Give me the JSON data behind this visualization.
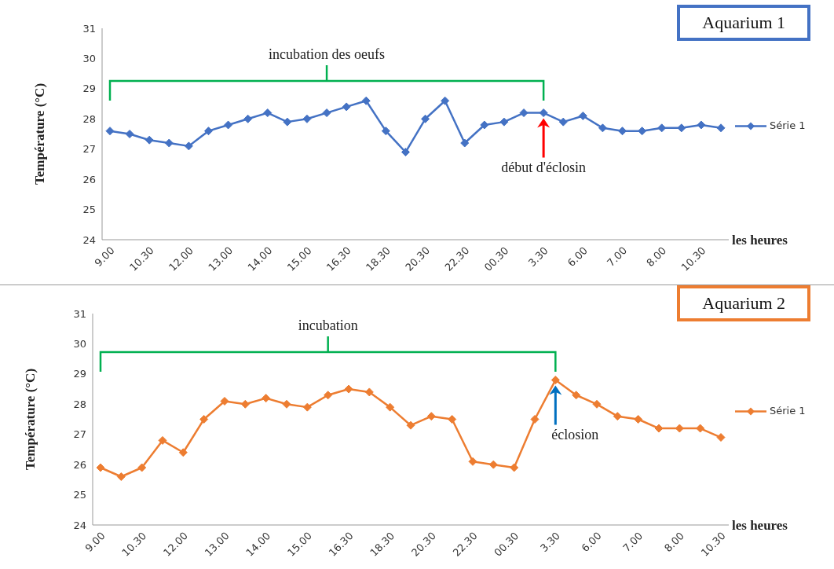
{
  "chart_data": [
    {
      "type": "line",
      "title": "Aquarium 1",
      "xlabel": "les heures",
      "ylabel": "Température (°C)",
      "categories": [
        "9.00",
        null,
        "10.30",
        null,
        "12.00",
        null,
        "13.00",
        null,
        "14.00",
        null,
        "15.00",
        null,
        "16.30",
        null,
        "18.30",
        null,
        "20.30",
        null,
        "22.30",
        null,
        "00.30",
        null,
        "3.30",
        null,
        "6.00",
        null,
        "7.00",
        null,
        "8.00",
        null,
        "10.30",
        null
      ],
      "series": [
        {
          "name": "Série 1",
          "color": "#4472c4",
          "values": [
            27.6,
            27.5,
            27.3,
            27.2,
            27.1,
            27.6,
            27.8,
            28.0,
            28.2,
            27.9,
            28.0,
            28.2,
            28.4,
            28.6,
            27.6,
            26.9,
            28.0,
            28.6,
            27.2,
            27.8,
            27.9,
            28.2,
            28.2,
            27.9,
            28.1,
            27.7,
            27.6,
            27.6,
            27.7,
            27.7,
            27.8,
            27.7
          ]
        }
      ],
      "ylim": [
        24,
        31
      ],
      "yticks": [
        24,
        25,
        26,
        27,
        28,
        29,
        30,
        31
      ],
      "legend": "right",
      "marker": "diamond",
      "grid": false,
      "annotations": [
        "incubation des oeufs",
        "début d'éclosin"
      ]
    },
    {
      "type": "line",
      "title": "Aquarium 2",
      "xlabel": "les heures",
      "ylabel": "Température (°C)",
      "categories": [
        "9.00",
        null,
        "10.30",
        null,
        "12.00",
        null,
        "13.00",
        null,
        "14.00",
        null,
        "15.00",
        null,
        "16.30",
        null,
        "18.30",
        null,
        "20.30",
        null,
        "22.30",
        null,
        "00.30",
        null,
        "3.30",
        null,
        "6.00",
        null,
        "7.00",
        null,
        "8.00",
        null,
        "10.30"
      ],
      "series": [
        {
          "name": "Série 1",
          "color": "#ed7d31",
          "values": [
            25.9,
            25.6,
            25.9,
            26.8,
            26.4,
            27.5,
            28.1,
            28.0,
            28.2,
            28.0,
            27.9,
            28.3,
            28.5,
            28.4,
            27.9,
            27.3,
            27.6,
            27.5,
            26.1,
            26.0,
            25.9,
            27.5,
            28.8,
            28.3,
            28.0,
            27.6,
            27.5,
            27.2,
            27.2,
            27.2,
            26.9
          ]
        }
      ],
      "ylim": [
        24,
        31
      ],
      "yticks": [
        24,
        25,
        26,
        27,
        28,
        29,
        30,
        31
      ],
      "legend": "right",
      "marker": "diamond",
      "grid": false,
      "annotations": [
        "incubation",
        "éclosion"
      ]
    }
  ]
}
